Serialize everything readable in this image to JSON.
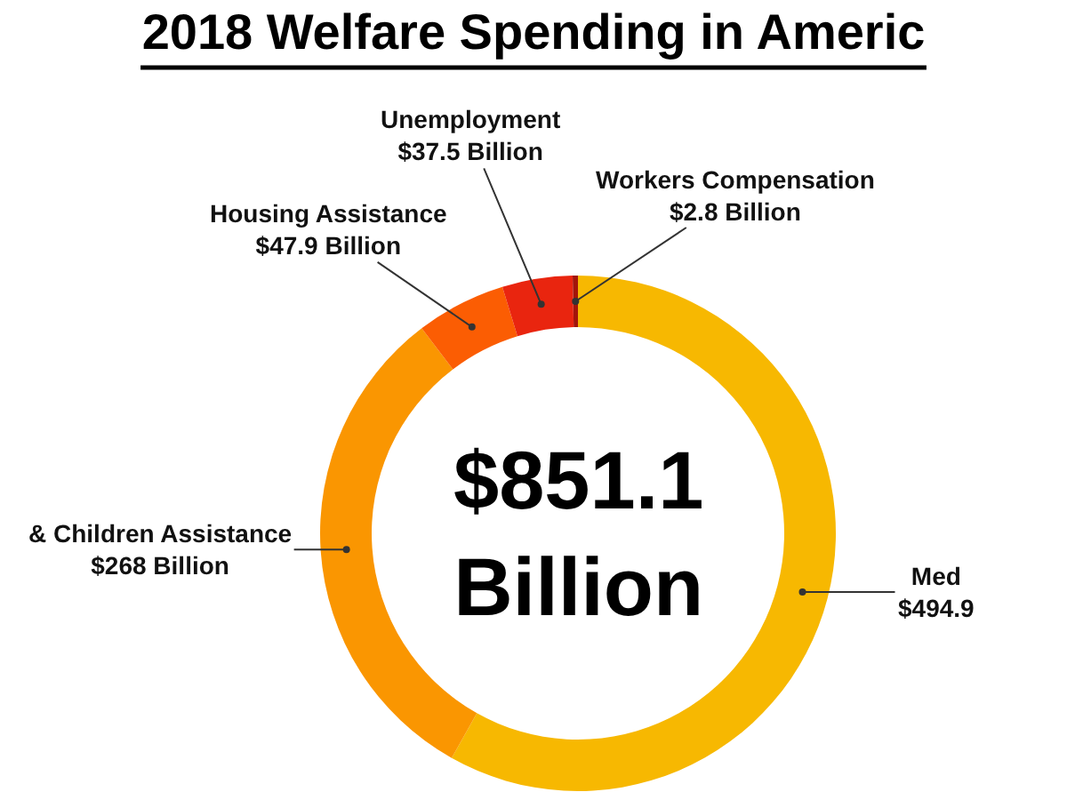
{
  "chart_data": {
    "type": "donut",
    "title": "2018 Welfare Spending in Americ",
    "categories": [
      "Med",
      "& Children Assistance",
      "Housing Assistance",
      "Unemployment",
      "Workers Compensation"
    ],
    "values": [
      494.9,
      268,
      47.9,
      37.5,
      2.8
    ],
    "value_labels": [
      "$494.9",
      "$268 Billion",
      "$47.9 Billion",
      "$37.5 Billion",
      "$2.8 Billion"
    ],
    "colors": [
      "#f7b801",
      "#fa9601",
      "#fb5d03",
      "#e9250f",
      "#a3150b"
    ],
    "annotations": [
      "$851.1 Billion"
    ],
    "legend": false
  }
}
